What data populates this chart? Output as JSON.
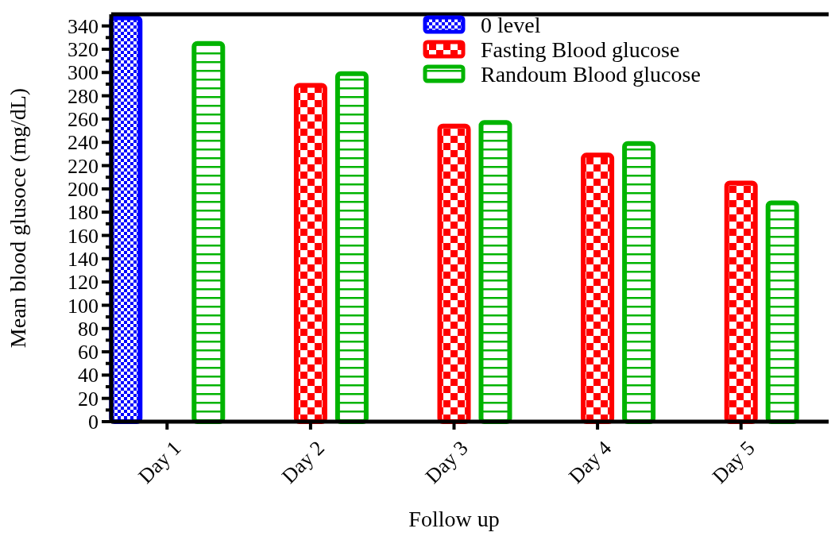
{
  "chart_data": {
    "type": "bar",
    "xlabel": "Follow up",
    "ylabel": "Mean blood glusoce (mg/dL)",
    "categories": [
      "Day 1",
      "Day 2",
      "Day 3",
      "Day 4",
      "Day 5"
    ],
    "series": [
      {
        "name": "0 level",
        "color": "#0000ff",
        "values": [
          347,
          null,
          null,
          null,
          null
        ]
      },
      {
        "name": "Fasting Blood glucose",
        "color": "#ff0000",
        "values": [
          null,
          289,
          254,
          229,
          205
        ]
      },
      {
        "name": "Randoum Blood glucose",
        "color": "#00b400",
        "values": [
          325,
          299,
          257,
          239,
          188
        ]
      }
    ],
    "ylim": [
      0,
      350
    ],
    "yticks": [
      0,
      {
        "value": 10,
        "label": null
      },
      20,
      {
        "value": 30,
        "label": null
      },
      40,
      {
        "value": 50,
        "label": null
      },
      60,
      {
        "value": 70,
        "label": null
      },
      80,
      {
        "value": 90,
        "label": null
      },
      100,
      {
        "value": 110,
        "label": null
      },
      120,
      {
        "value": 130,
        "label": null
      },
      140,
      {
        "value": 150,
        "label": null
      },
      160,
      {
        "value": 170,
        "label": null
      },
      180,
      {
        "value": 190,
        "label": null
      },
      200,
      {
        "value": 210,
        "label": null
      },
      220,
      {
        "value": 230,
        "label": null
      },
      240,
      {
        "value": 250,
        "label": null
      },
      260,
      {
        "value": 270,
        "label": null
      },
      280,
      {
        "value": 290,
        "label": null
      },
      300,
      {
        "value": 310,
        "label": null
      },
      320,
      {
        "value": 330,
        "label": null
      },
      340
    ],
    "legend": "top right",
    "grid": false
  }
}
